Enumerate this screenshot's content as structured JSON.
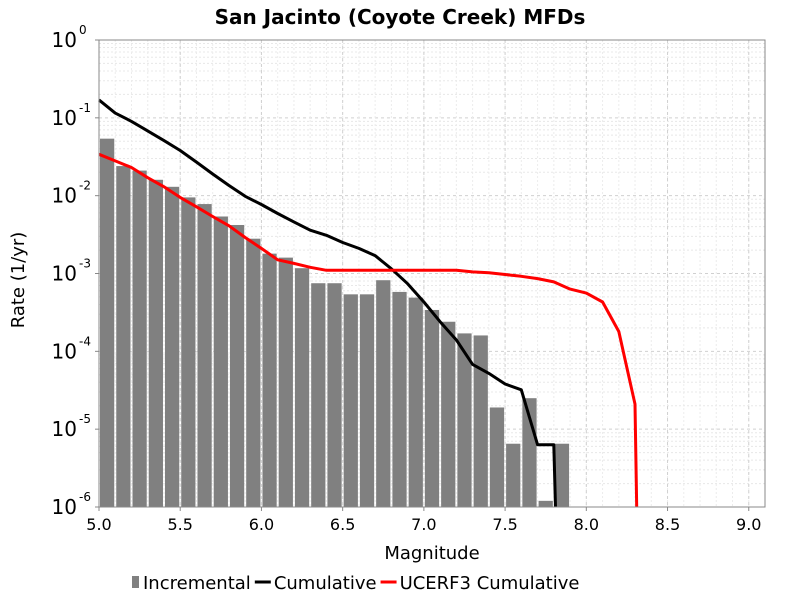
{
  "chart_data": {
    "type": "bar",
    "title": "San Jacinto (Coyote Creek) MFDs",
    "xlabel": "Magnitude",
    "ylabel": "Rate (1/yr)",
    "xlim": [
      5.0,
      9.1
    ],
    "ylim": [
      1e-06,
      1
    ],
    "y_scale": "log",
    "grid": true,
    "x_ticks": [
      "5.0",
      "5.5",
      "6.0",
      "6.5",
      "7.0",
      "7.5",
      "8.0",
      "8.5",
      "9.0"
    ],
    "x_tick_values": [
      5.0,
      5.5,
      6.0,
      6.5,
      7.0,
      7.5,
      8.0,
      8.5,
      9.0
    ],
    "y_ticks": [
      {
        "base": "10",
        "exp": "0",
        "value": 1
      },
      {
        "base": "10",
        "exp": "-1",
        "value": 0.1
      },
      {
        "base": "10",
        "exp": "-2",
        "value": 0.01
      },
      {
        "base": "10",
        "exp": "-3",
        "value": 0.001
      },
      {
        "base": "10",
        "exp": "-4",
        "value": 0.0001
      },
      {
        "base": "10",
        "exp": "-5",
        "value": 1e-05
      },
      {
        "base": "10",
        "exp": "-6",
        "value": 1e-06
      }
    ],
    "legend_position": "bottom",
    "series": [
      {
        "name": "Incremental",
        "kind": "bar",
        "color": "#808080",
        "bin_width": 0.1,
        "x": [
          5.05,
          5.15,
          5.25,
          5.35,
          5.45,
          5.55,
          5.65,
          5.75,
          5.85,
          5.95,
          6.05,
          6.15,
          6.25,
          6.35,
          6.45,
          6.55,
          6.65,
          6.75,
          6.85,
          6.95,
          7.05,
          7.15,
          7.25,
          7.35,
          7.45,
          7.55,
          7.65,
          7.75,
          7.85
        ],
        "y": [
          0.054,
          0.024,
          0.021,
          0.016,
          0.013,
          0.0095,
          0.0078,
          0.0054,
          0.0042,
          0.0028,
          0.0018,
          0.0016,
          0.00117,
          0.00075,
          0.00075,
          0.00054,
          0.00054,
          0.00082,
          0.00058,
          0.00049,
          0.00034,
          0.00024,
          0.00017,
          0.00016,
          1.9e-05,
          6.5e-06,
          2.5e-05,
          1.2e-06,
          6.5e-06
        ]
      },
      {
        "name": "Cumulative",
        "kind": "line",
        "color": "#000000",
        "x": [
          5.0,
          5.1,
          5.2,
          5.3,
          5.4,
          5.5,
          5.6,
          5.7,
          5.8,
          5.9,
          6.0,
          6.1,
          6.2,
          6.3,
          6.4,
          6.5,
          6.6,
          6.7,
          6.8,
          6.9,
          7.0,
          7.1,
          7.2,
          7.3,
          7.4,
          7.5,
          7.6,
          7.7,
          7.8,
          7.81
        ],
        "y": [
          0.17,
          0.115,
          0.09,
          0.068,
          0.051,
          0.038,
          0.027,
          0.019,
          0.0135,
          0.0098,
          0.0077,
          0.0059,
          0.0046,
          0.0036,
          0.0031,
          0.0025,
          0.0021,
          0.0017,
          0.00115,
          0.00074,
          0.00043,
          0.00024,
          0.00014,
          6.8e-05,
          5.2e-05,
          3.8e-05,
          3.2e-05,
          6.3e-06,
          6.3e-06,
          1e-06
        ]
      },
      {
        "name": "UCERF3 Cumulative",
        "kind": "line",
        "color": "#ff0000",
        "x": [
          5.0,
          5.1,
          5.2,
          5.3,
          5.4,
          5.5,
          5.6,
          5.7,
          5.8,
          5.9,
          6.0,
          6.1,
          6.2,
          6.3,
          6.4,
          6.5,
          6.6,
          6.7,
          6.8,
          6.9,
          7.0,
          7.1,
          7.2,
          7.3,
          7.4,
          7.5,
          7.6,
          7.7,
          7.8,
          7.9,
          8.0,
          8.1,
          8.2,
          8.3,
          8.31
        ],
        "y": [
          0.034,
          0.028,
          0.023,
          0.017,
          0.013,
          0.0095,
          0.0072,
          0.0054,
          0.0041,
          0.0029,
          0.0021,
          0.0015,
          0.00135,
          0.0012,
          0.0011,
          0.0011,
          0.0011,
          0.0011,
          0.0011,
          0.0011,
          0.0011,
          0.0011,
          0.0011,
          0.00105,
          0.00102,
          0.00097,
          0.00092,
          0.00086,
          0.00078,
          0.00063,
          0.00056,
          0.00043,
          0.00018,
          2.1e-05,
          1e-06
        ]
      }
    ]
  }
}
